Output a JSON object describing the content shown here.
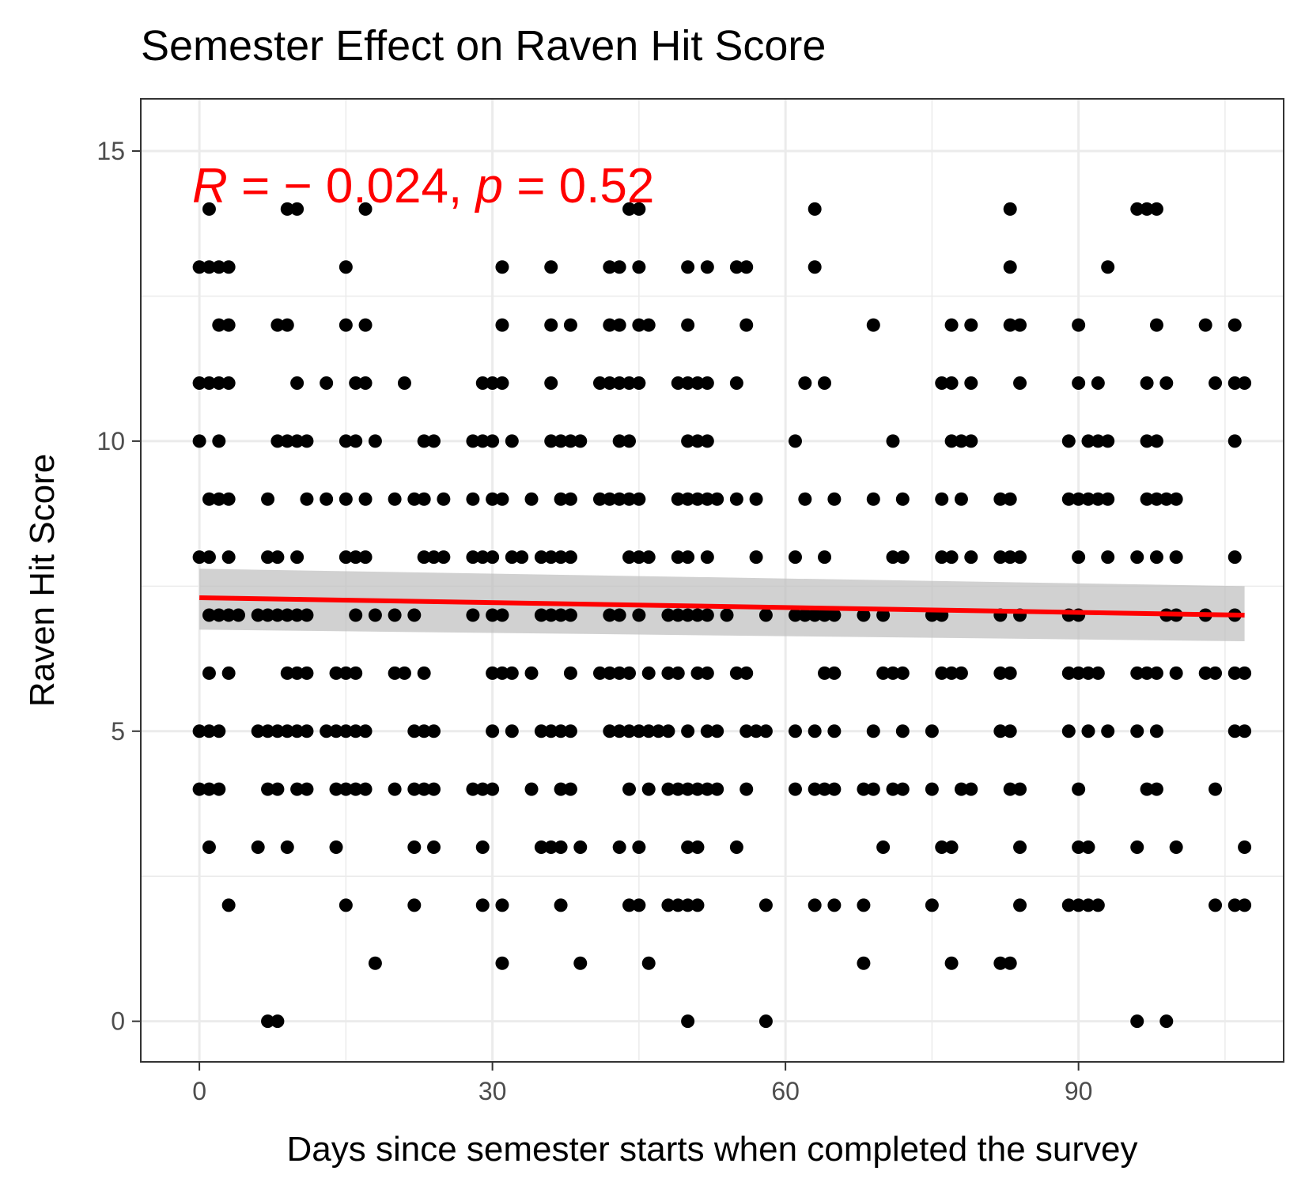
{
  "chart_data": {
    "type": "scatter",
    "title": "Semester Effect on Raven Hit Score",
    "xlabel": "Days since semester starts when completed the survey",
    "ylabel": "Raven Hit Score",
    "xlim": [
      -6,
      111
    ],
    "ylim": [
      -0.7,
      15.9
    ],
    "x_ticks": [
      0,
      30,
      60,
      90
    ],
    "x_tick_labels": [
      "0",
      "30",
      "60",
      "90"
    ],
    "y_ticks": [
      0,
      5,
      10,
      15
    ],
    "y_tick_labels": [
      "0",
      "5",
      "10",
      "15"
    ],
    "grid": true,
    "legend": "none",
    "annotation": {
      "r_label": "R",
      "r_value": " = − 0.024, ",
      "p_label": "p",
      "p_value": " = 0.52",
      "color": "#ff0000"
    },
    "regression": {
      "x": [
        0,
        107
      ],
      "y": [
        7.3,
        7.0
      ],
      "ci_lower": [
        6.75,
        6.55
      ],
      "ci_upper": [
        7.8,
        7.5
      ],
      "line_color": "#ff0000",
      "ribbon_color": "#bebebe"
    },
    "points": [
      {
        "y": 14,
        "x": [
          1,
          9,
          10,
          17,
          44,
          45,
          63,
          83,
          96,
          97,
          98
        ]
      },
      {
        "y": 13,
        "x": [
          0,
          1,
          2,
          3,
          15,
          31,
          36,
          42,
          43,
          45,
          50,
          52,
          55,
          56,
          63,
          83,
          93
        ]
      },
      {
        "y": 12,
        "x": [
          2,
          3,
          8,
          9,
          15,
          17,
          31,
          36,
          38,
          42,
          43,
          45,
          46,
          50,
          56,
          69,
          77,
          79,
          83,
          84,
          90,
          98,
          103,
          106
        ]
      },
      {
        "y": 11,
        "x": [
          0,
          1,
          2,
          3,
          10,
          13,
          16,
          17,
          21,
          29,
          30,
          31,
          36,
          41,
          42,
          43,
          44,
          45,
          49,
          50,
          51,
          52,
          55,
          62,
          64,
          76,
          77,
          79,
          84,
          90,
          92,
          97,
          99,
          104,
          106,
          107
        ]
      },
      {
        "y": 10,
        "x": [
          0,
          2,
          8,
          9,
          10,
          11,
          15,
          16,
          18,
          23,
          24,
          28,
          29,
          30,
          32,
          36,
          37,
          38,
          39,
          43,
          44,
          50,
          51,
          52,
          61,
          71,
          77,
          78,
          79,
          89,
          91,
          92,
          93,
          97,
          98,
          106
        ]
      },
      {
        "y": 9,
        "x": [
          1,
          2,
          3,
          7,
          11,
          13,
          15,
          17,
          20,
          22,
          23,
          25,
          28,
          30,
          31,
          34,
          37,
          38,
          41,
          42,
          43,
          44,
          45,
          49,
          50,
          51,
          52,
          53,
          55,
          57,
          62,
          65,
          69,
          72,
          76,
          78,
          82,
          83,
          89,
          90,
          91,
          92,
          93,
          97,
          98,
          99,
          100
        ]
      },
      {
        "y": 8,
        "x": [
          0,
          1,
          3,
          7,
          8,
          10,
          15,
          16,
          17,
          23,
          24,
          25,
          28,
          29,
          30,
          32,
          33,
          35,
          36,
          37,
          38,
          44,
          45,
          46,
          49,
          50,
          52,
          57,
          61,
          64,
          71,
          72,
          76,
          77,
          79,
          82,
          83,
          84,
          90,
          93,
          96,
          98,
          100,
          106
        ]
      },
      {
        "y": 7,
        "x": [
          1,
          2,
          3,
          4,
          6,
          7,
          8,
          9,
          10,
          11,
          16,
          18,
          20,
          22,
          28,
          30,
          31,
          35,
          36,
          37,
          38,
          42,
          43,
          45,
          48,
          49,
          50,
          51,
          52,
          54,
          58,
          61,
          62,
          63,
          64,
          65,
          68,
          70,
          75,
          76,
          82,
          84,
          89,
          90,
          99,
          100,
          103,
          106
        ]
      },
      {
        "y": 6,
        "x": [
          1,
          3,
          9,
          10,
          11,
          14,
          15,
          16,
          20,
          21,
          23,
          30,
          31,
          32,
          34,
          38,
          41,
          42,
          43,
          44,
          46,
          48,
          49,
          51,
          52,
          55,
          56,
          64,
          65,
          70,
          71,
          72,
          76,
          77,
          78,
          82,
          83,
          89,
          90,
          91,
          92,
          96,
          97,
          98,
          100,
          103,
          104,
          106,
          107
        ]
      },
      {
        "y": 5,
        "x": [
          0,
          1,
          2,
          6,
          7,
          8,
          9,
          10,
          11,
          13,
          14,
          15,
          16,
          17,
          22,
          23,
          24,
          30,
          32,
          35,
          36,
          37,
          38,
          42,
          43,
          44,
          45,
          46,
          47,
          48,
          50,
          52,
          53,
          56,
          57,
          58,
          61,
          63,
          65,
          69,
          72,
          75,
          82,
          83,
          89,
          91,
          93,
          96,
          98,
          106,
          107
        ]
      },
      {
        "y": 4,
        "x": [
          0,
          1,
          2,
          7,
          8,
          10,
          11,
          14,
          15,
          16,
          17,
          20,
          22,
          23,
          24,
          28,
          29,
          30,
          34,
          37,
          38,
          44,
          46,
          48,
          49,
          50,
          51,
          52,
          53,
          56,
          61,
          63,
          64,
          65,
          68,
          69,
          71,
          72,
          75,
          78,
          79,
          83,
          84,
          90,
          97,
          98,
          104
        ]
      },
      {
        "y": 3,
        "x": [
          1,
          6,
          9,
          14,
          22,
          24,
          29,
          35,
          36,
          37,
          39,
          43,
          45,
          50,
          51,
          55,
          70,
          76,
          77,
          84,
          90,
          91,
          96,
          100,
          107
        ]
      },
      {
        "y": 2,
        "x": [
          3,
          15,
          22,
          29,
          31,
          37,
          44,
          45,
          48,
          49,
          50,
          51,
          58,
          63,
          65,
          68,
          75,
          84,
          89,
          90,
          91,
          92,
          104,
          106,
          107
        ]
      },
      {
        "y": 1,
        "x": [
          18,
          31,
          39,
          46,
          68,
          77,
          82,
          83
        ]
      },
      {
        "y": 0,
        "x": [
          7,
          8,
          50,
          58,
          96,
          99
        ]
      }
    ]
  }
}
